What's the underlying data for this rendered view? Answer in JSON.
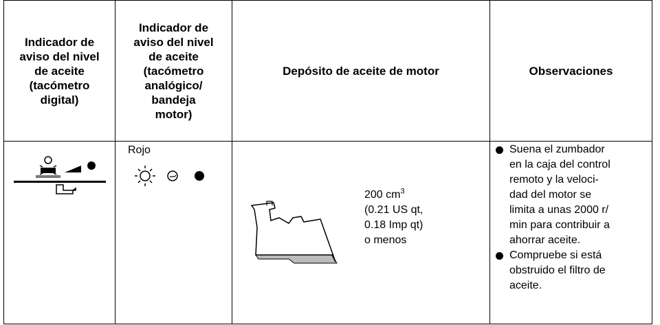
{
  "table": {
    "headers": [
      {
        "lines": [
          "Indicador de",
          "aviso del nivel",
          "de aceite",
          "(tacómetro",
          "digital)"
        ]
      },
      {
        "lines": [
          "Indicador de",
          "aviso del nivel",
          "de aceite",
          "(tacómetro",
          "analógico/",
          "bandeja",
          "motor)"
        ]
      },
      {
        "lines": [
          "Depósito de aceite de motor"
        ]
      },
      {
        "lines": [
          "Observaciones"
        ]
      }
    ],
    "row": {
      "indicator_color": "Rojo",
      "capacity": {
        "value": "200 cm",
        "superscript": "3",
        "lines": [
          "(0.21 US qt,",
          "0.18 Imp qt)",
          "o menos"
        ]
      },
      "observations": [
        {
          "lines": [
            "Suena el zumbador",
            "en la caja del control",
            "remoto y la veloci-",
            "dad del motor se",
            "limita a unas 2000 r/",
            "min para contribuir a",
            "ahorrar aceite."
          ]
        },
        {
          "lines": [
            "Compruebe si está",
            "obstruido el filtro de",
            "aceite."
          ]
        }
      ]
    }
  }
}
